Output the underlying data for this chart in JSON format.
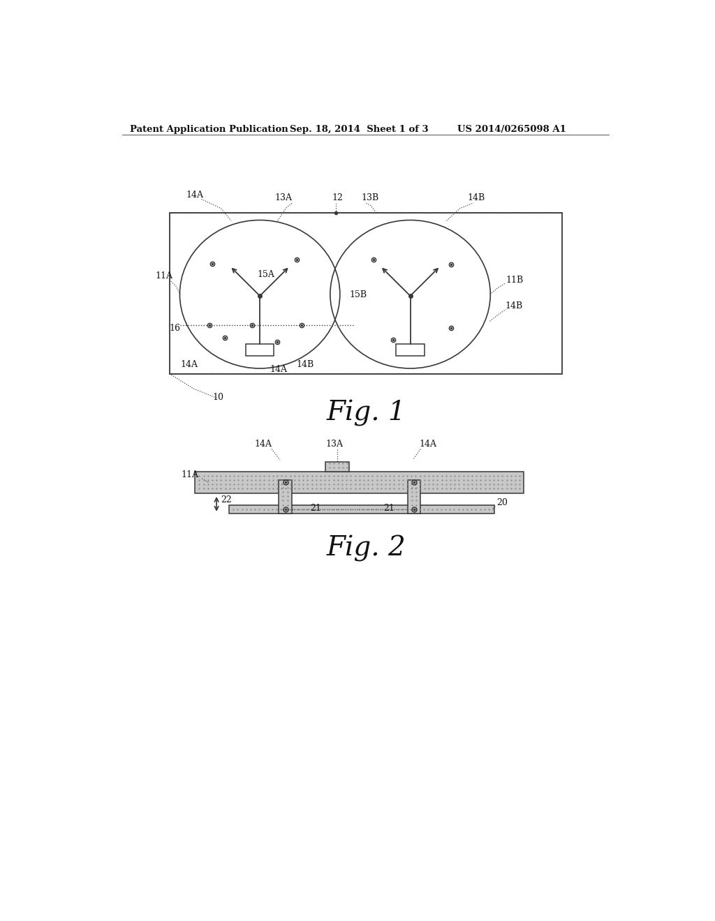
{
  "bg_color": "#ffffff",
  "header_left": "Patent Application Publication",
  "header_mid": "Sep. 18, 2014  Sheet 1 of 3",
  "header_right": "US 2014/0265098 A1",
  "fig1_label": "Fig. 1",
  "fig2_label": "Fig. 2",
  "lc": "#383838",
  "lc_light": "#555555"
}
